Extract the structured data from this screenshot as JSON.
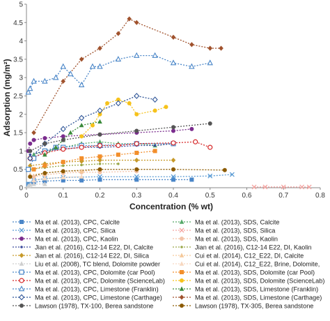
{
  "chart_data": {
    "type": "scatter",
    "title": "",
    "xlabel": "Concentration (% wt)",
    "ylabel": "Adsorption (mg/m²)",
    "xlim": [
      0,
      0.8
    ],
    "ylim": [
      0,
      5
    ],
    "xticks": [
      "0",
      "0.1",
      "0.2",
      "0.3",
      "0.4",
      "0.5",
      "0.6",
      "0.7",
      "0.8"
    ],
    "yticks": [
      "0",
      "0.5",
      "1",
      "1.5",
      "2",
      "2.5",
      "3",
      "3.5",
      "4",
      "4.5",
      "5"
    ],
    "grid": false,
    "legend_position": "bottom",
    "series": [
      {
        "name": "Ma et al. (2013), CPC, Calcite",
        "color": "#4a86c8",
        "marker": "square",
        "x": [
          0.005,
          0.02,
          0.05,
          0.1,
          0.15,
          0.2,
          0.3,
          0.4,
          0.45
        ],
        "y": [
          0.1,
          0.15,
          0.18,
          0.2,
          0.2,
          0.22,
          0.22,
          0.22,
          0.22
        ]
      },
      {
        "name": "Ma et al. (2013), SDS, Calcite",
        "color": "#55a868",
        "marker": "triangle",
        "x": [
          0.02,
          0.05,
          0.1,
          0.15,
          0.2,
          0.25,
          0.3,
          0.35,
          0.4
        ],
        "y": [
          0.9,
          1.0,
          1.1,
          1.2,
          1.25,
          1.2,
          1.2,
          1.15,
          1.2
        ]
      },
      {
        "name": "Ma et al. (2013), CPC, Silica",
        "color": "#5a9bd4",
        "marker": "x",
        "x": [
          0.005,
          0.02,
          0.05,
          0.1,
          0.2,
          0.3,
          0.4,
          0.5,
          0.56
        ],
        "y": [
          0.1,
          0.2,
          0.25,
          0.28,
          0.3,
          0.3,
          0.3,
          0.32,
          0.36
        ]
      },
      {
        "name": "Ma et al. (2013), SDS, Silica",
        "color": "#f4a3a0",
        "marker": "x",
        "x": [
          0.62,
          0.65,
          0.7,
          0.75,
          0.77
        ],
        "y": [
          0.02,
          0.02,
          0.02,
          0.02,
          0.02
        ]
      },
      {
        "name": "Ma et al. (2013), CPC, Kaolin",
        "color": "#7b2d8e",
        "marker": "circle",
        "x": [
          0.005,
          0.01,
          0.02,
          0.05,
          0.1,
          0.2,
          0.3,
          0.4,
          0.45
        ],
        "y": [
          1.0,
          1.2,
          1.3,
          1.35,
          1.4,
          1.45,
          1.5,
          1.55,
          1.6
        ]
      },
      {
        "name": "Ma et al. (2013), SDS, Kaolin",
        "color": "#f3c3a8",
        "marker": "circle",
        "x": [
          0.02,
          0.05,
          0.1,
          0.15,
          0.2,
          0.3
        ],
        "y": [
          0.3,
          0.35,
          0.4,
          0.42,
          0.42,
          0.45
        ]
      },
      {
        "name": "Jian et al. (2016), C12-14 E22, DI, Calcite",
        "color": "#3b4a9c",
        "marker": "dot",
        "x": [
          0.01,
          0.05,
          0.1,
          0.15,
          0.2,
          0.25,
          0.3,
          0.35,
          0.4
        ],
        "y": [
          0.9,
          1.0,
          1.05,
          1.1,
          1.1,
          1.12,
          1.15,
          1.15,
          1.2
        ]
      },
      {
        "name": "Jian et al. (2016), C12-14 E22, DI, Kaolin",
        "color": "#9aa84a",
        "marker": "dot",
        "x": [
          0.01,
          0.05,
          0.1,
          0.15,
          0.2,
          0.25
        ],
        "y": [
          0.5,
          0.55,
          0.6,
          0.62,
          0.65,
          0.65
        ]
      },
      {
        "name": "Jian et al. (2016), C12-14 E22, DI, Silica",
        "color": "#c79a2a",
        "marker": "diamond",
        "x": [
          0.01,
          0.05,
          0.1,
          0.15,
          0.2,
          0.3,
          0.4
        ],
        "y": [
          0.6,
          0.65,
          0.7,
          0.72,
          0.75,
          0.75,
          0.75
        ]
      },
      {
        "name": "Cui et al. (2014), C12_E22, DI, Calcite",
        "color": "#f5c99a",
        "marker": "triangle",
        "x": [
          0.01,
          0.05,
          0.1,
          0.15,
          0.2
        ],
        "y": [
          0.35,
          0.4,
          0.45,
          0.45,
          0.5
        ]
      },
      {
        "name": "Liu et al. (2008), TC blend, Dolomite powder",
        "color": "#cfcfcf",
        "marker": "triangle",
        "x": [
          0.005,
          0.01,
          0.02,
          0.05
        ],
        "y": [
          0.05,
          0.08,
          0.1,
          0.1
        ]
      },
      {
        "name": "Cui et al. (2014), C12_E22, Brine, Dolomite,",
        "color": "#f7d8c0",
        "marker": "triangle",
        "x": [
          0.02,
          0.05,
          0.1,
          0.15
        ],
        "y": [
          0.2,
          0.25,
          0.28,
          0.3
        ]
      },
      {
        "name": "Ma et al. (2013), CPC, Dolomite (car Pool)",
        "color": "#4a86c8",
        "marker": "open-square",
        "x": [
          0.005,
          0.02,
          0.05,
          0.08,
          0.1,
          0.15,
          0.2,
          0.3,
          0.4
        ],
        "y": [
          0.5,
          0.8,
          1.0,
          1.1,
          1.1,
          1.15,
          1.15,
          1.2,
          1.2
        ]
      },
      {
        "name": "Ma et al. (2013), SDS, Dolomite (car Pool)",
        "color": "#f28e2b",
        "marker": "square",
        "x": [
          0.02,
          0.05,
          0.1,
          0.15,
          0.2,
          0.25,
          0.3,
          0.35
        ],
        "y": [
          0.5,
          0.6,
          0.7,
          0.8,
          0.85,
          0.9,
          0.95,
          1.0
        ]
      },
      {
        "name": "Ma et al. (2013), CPC, Dolomite (ScienceLab)",
        "color": "#d62728",
        "marker": "open-circle",
        "x": [
          0.01,
          0.05,
          0.1,
          0.15,
          0.2,
          0.25,
          0.3,
          0.4,
          0.46,
          0.5
        ],
        "y": [
          0.8,
          0.95,
          1.05,
          1.1,
          1.15,
          1.15,
          1.2,
          1.22,
          1.25,
          1.1
        ]
      },
      {
        "name": "Ma et al. (2013), SDS, Dolomite (ScienceLab)",
        "color": "#f6c21b",
        "marker": "circle",
        "x": [
          0.15,
          0.18,
          0.2,
          0.22,
          0.25,
          0.28,
          0.3,
          0.35,
          0.38
        ],
        "y": [
          1.4,
          1.7,
          2.0,
          2.3,
          2.4,
          2.3,
          2.0,
          2.1,
          2.2
        ]
      },
      {
        "name": "Ma et al. (2013), CPC, Limestone (Franklin)",
        "color": "#4a86c8",
        "marker": "open-triangle",
        "x": [
          0.005,
          0.01,
          0.02,
          0.05,
          0.08,
          0.1,
          0.12,
          0.15,
          0.18,
          0.2,
          0.25,
          0.3,
          0.35,
          0.4,
          0.45,
          0.5
        ],
        "y": [
          2.6,
          2.7,
          2.9,
          2.9,
          3.0,
          3.3,
          3.1,
          2.8,
          3.3,
          3.3,
          3.5,
          3.6,
          3.6,
          3.4,
          3.3,
          3.4
        ]
      },
      {
        "name": "Ma et al. (2013), SDS, Limestone (Franklin)",
        "color": "#3a8a3a",
        "marker": "triangle",
        "x": [
          0.05,
          0.08,
          0.1,
          0.12,
          0.15,
          0.2
        ],
        "y": [
          0.9,
          1.1,
          1.3,
          1.5,
          1.7,
          1.8
        ]
      },
      {
        "name": "Ma et al. (2013), CPC, Limestone (Carthage)",
        "color": "#2f5597",
        "marker": "open-diamond",
        "x": [
          0.01,
          0.05,
          0.1,
          0.15,
          0.2,
          0.25,
          0.3,
          0.35
        ],
        "y": [
          0.8,
          1.2,
          1.6,
          1.9,
          2.1,
          2.3,
          2.5,
          2.4
        ]
      },
      {
        "name": "Ma et al. (2013), SDS, Limestone (Carthage)",
        "color": "#a0522d",
        "marker": "diamond",
        "x": [
          0.02,
          0.1,
          0.15,
          0.2,
          0.25,
          0.28,
          0.3,
          0.4,
          0.45,
          0.5,
          0.53
        ],
        "y": [
          1.5,
          2.9,
          3.5,
          3.8,
          4.2,
          4.6,
          4.5,
          4.1,
          3.9,
          3.8,
          3.8
        ]
      },
      {
        "name": "Lawson (1978), TX-100, Berea sandstone",
        "color": "#555555",
        "marker": "circle",
        "x": [
          0.01,
          0.05,
          0.1,
          0.2,
          0.3,
          0.4,
          0.5
        ],
        "y": [
          1.0,
          1.2,
          1.3,
          1.45,
          1.55,
          1.65,
          1.75
        ]
      },
      {
        "name": "Lawson (1978), TX-305, Berea sandstone",
        "color": "#8b5a00",
        "marker": "circle",
        "x": [
          0.01,
          0.05,
          0.1,
          0.2,
          0.3,
          0.4,
          0.54
        ],
        "y": [
          0.3,
          0.4,
          0.45,
          0.5,
          0.5,
          0.5,
          0.48
        ]
      }
    ]
  }
}
